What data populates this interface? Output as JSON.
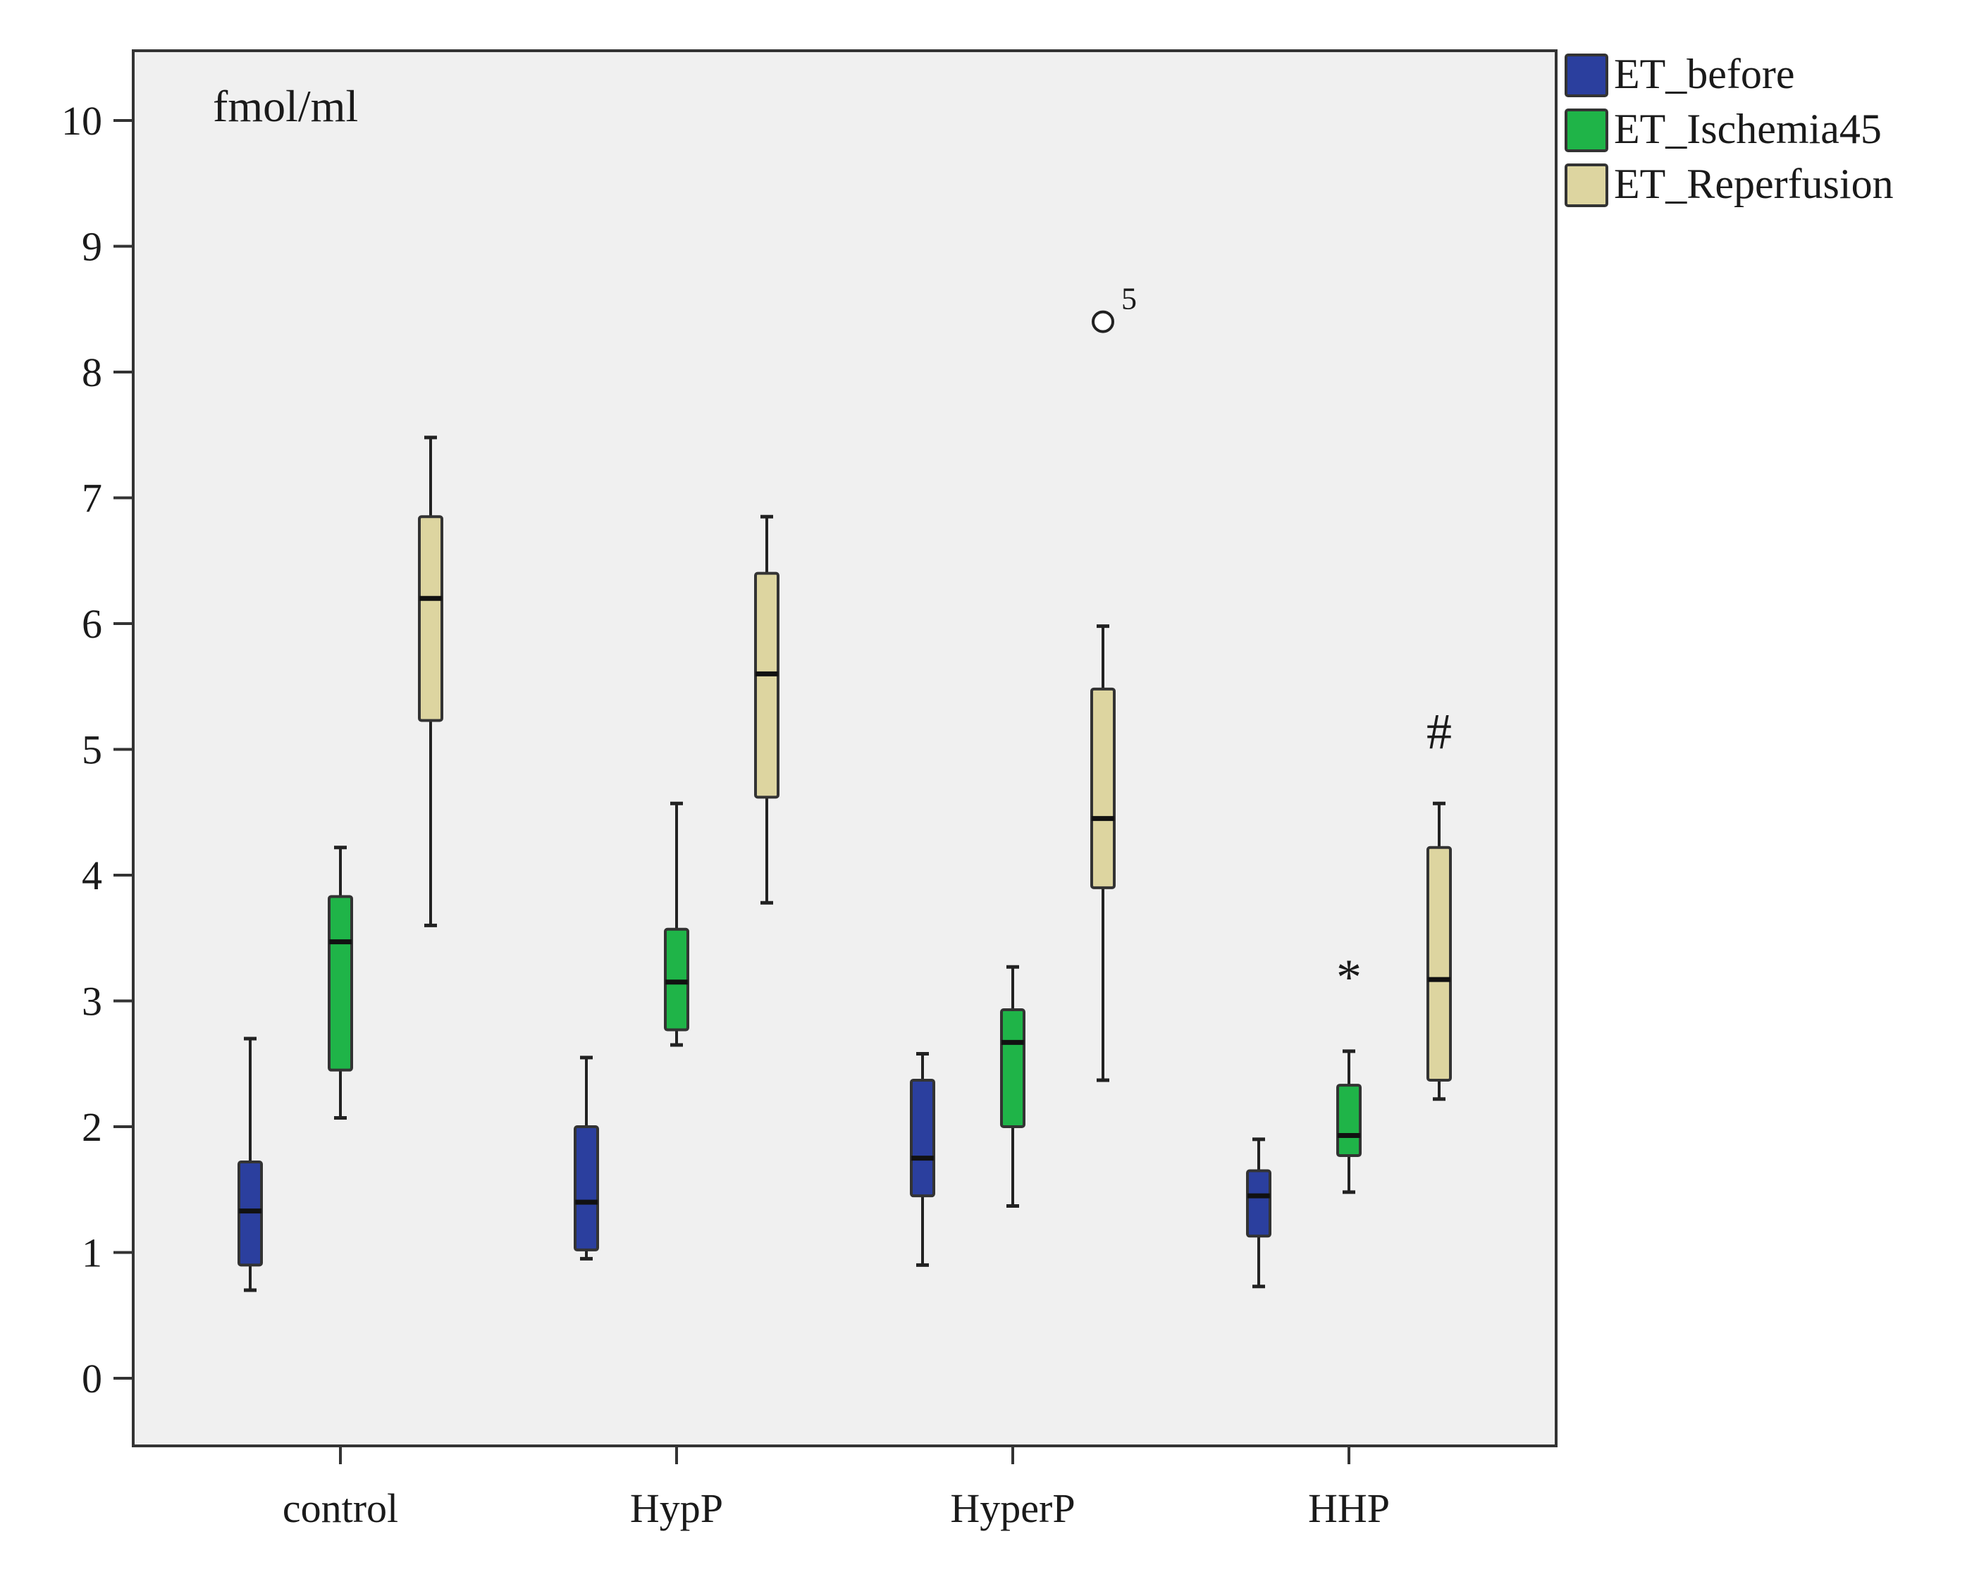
{
  "chart_data": {
    "type": "box",
    "unit_label": "fmol/ml",
    "categories": [
      "control",
      "HypP",
      "HyperP",
      "HHP"
    ],
    "y_ticks": [
      "0",
      "1",
      "2",
      "3",
      "4",
      "5",
      "6",
      "7",
      "8",
      "9",
      "10"
    ],
    "ylim": [
      -0.55,
      10.55
    ],
    "grid": false,
    "legend_position": "right-top",
    "series": [
      {
        "name": "ET_before",
        "color": "#2b3f9e",
        "boxes": [
          {
            "min": 0.7,
            "q1": 0.9,
            "median": 1.33,
            "q3": 1.72,
            "max": 2.7
          },
          {
            "min": 0.95,
            "q1": 1.02,
            "median": 1.4,
            "q3": 2.0,
            "max": 2.55
          },
          {
            "min": 0.9,
            "q1": 1.45,
            "median": 1.75,
            "q3": 2.37,
            "max": 2.58
          },
          {
            "min": 0.73,
            "q1": 1.13,
            "median": 1.45,
            "q3": 1.65,
            "max": 1.9
          }
        ]
      },
      {
        "name": "ET_Ischemia45",
        "color": "#1fb448",
        "boxes": [
          {
            "min": 2.07,
            "q1": 2.45,
            "median": 3.47,
            "q3": 3.83,
            "max": 4.22
          },
          {
            "min": 2.65,
            "q1": 2.77,
            "median": 3.15,
            "q3": 3.57,
            "max": 4.57
          },
          {
            "min": 1.37,
            "q1": 2.0,
            "median": 2.67,
            "q3": 2.93,
            "max": 3.27
          },
          {
            "min": 1.48,
            "q1": 1.77,
            "median": 1.93,
            "q3": 2.33,
            "max": 2.6
          }
        ]
      },
      {
        "name": "ET_Reperfusion",
        "color": "#ddd5a0",
        "boxes": [
          {
            "min": 3.6,
            "q1": 5.23,
            "median": 6.2,
            "q3": 6.85,
            "max": 7.48
          },
          {
            "min": 3.78,
            "q1": 4.62,
            "median": 5.6,
            "q3": 6.4,
            "max": 6.85
          },
          {
            "min": 2.37,
            "q1": 3.9,
            "median": 4.45,
            "q3": 5.48,
            "max": 5.98
          },
          {
            "min": 2.22,
            "q1": 2.37,
            "median": 3.17,
            "q3": 4.22,
            "max": 4.57
          }
        ]
      }
    ],
    "outliers": [
      {
        "category": "HyperP",
        "series": "ET_Reperfusion",
        "value": 8.4,
        "label": "5"
      }
    ],
    "annotations": [
      {
        "category": "HHP",
        "series": "ET_Ischemia45",
        "text": "*",
        "y": 3.2
      },
      {
        "category": "HHP",
        "series": "ET_Reperfusion",
        "text": "#",
        "y": 5.15
      }
    ]
  }
}
